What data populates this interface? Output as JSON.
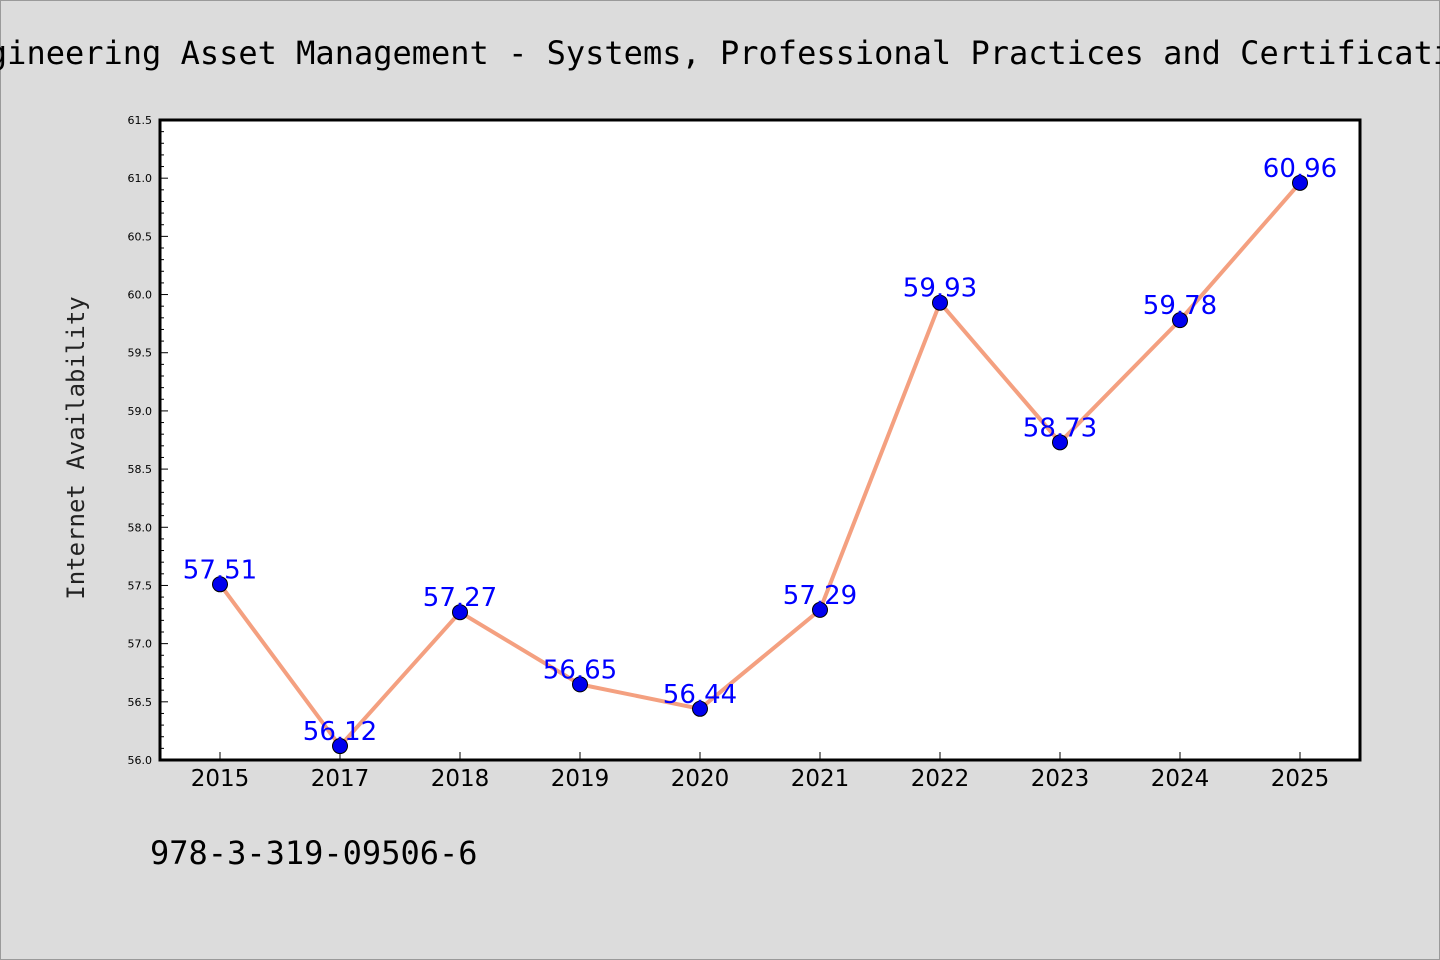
{
  "chart_data": {
    "type": "line",
    "title": "Engineering Asset Management - Systems, Professional Practices and Certification",
    "xlabel": "",
    "ylabel": "Internet Availability",
    "categories": [
      "2015",
      "2017",
      "2018",
      "2019",
      "2020",
      "2021",
      "2022",
      "2023",
      "2024",
      "2025"
    ],
    "values": [
      57.51,
      56.12,
      57.27,
      56.65,
      56.44,
      57.29,
      59.93,
      58.73,
      59.78,
      60.96
    ],
    "data_labels": [
      "57.51",
      "56.12",
      "57.27",
      "56.65",
      "56.44",
      "57.29",
      "59.93",
      "58.73",
      "59.78",
      "60.96"
    ],
    "ylim": [
      56.0,
      61.5
    ],
    "y_ticks": [
      "56.0",
      "56.5",
      "57.0",
      "57.5",
      "58.0",
      "58.5",
      "59.0",
      "59.5",
      "60.0",
      "60.5",
      "61.0",
      "61.5"
    ],
    "grid": false,
    "legend": "none",
    "line_color": "#f4a080",
    "marker_color": "#0000ee",
    "label_color": "#0000ff"
  },
  "footnote": "978-3-319-09506-6",
  "colors": {
    "background": "#dcdcdc",
    "plot_background": "#ffffff"
  }
}
